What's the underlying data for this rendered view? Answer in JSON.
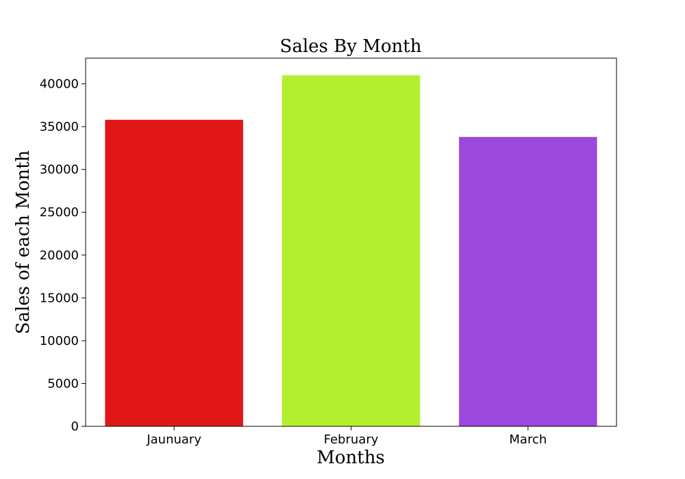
{
  "chart_data": {
    "type": "bar",
    "title": "Sales By Month",
    "xlabel": "Months",
    "ylabel": "Sales of each Month",
    "categories": [
      "Jaunuary",
      "February",
      "March"
    ],
    "values": [
      35800,
      41000,
      33800
    ],
    "colors": [
      "#e11717",
      "#b5ee30",
      "#9b48dc"
    ],
    "ylim": [
      0,
      43000
    ],
    "yticks": [
      0,
      5000,
      10000,
      15000,
      20000,
      25000,
      30000,
      35000,
      40000
    ],
    "grid": false,
    "legend": "none"
  }
}
